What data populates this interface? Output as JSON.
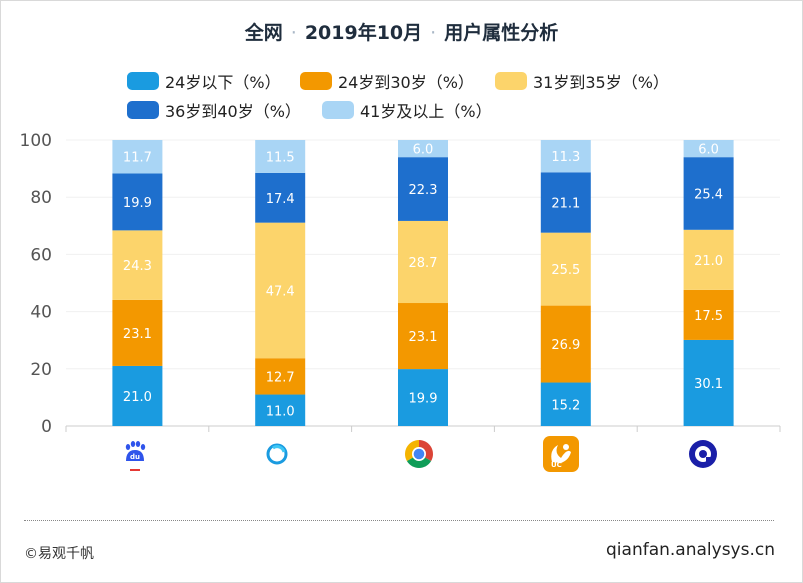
{
  "title": {
    "part1": "全网",
    "part2": "2019年10月",
    "part3": "用户属性分析",
    "separator": "·"
  },
  "chart_data": {
    "type": "bar",
    "stacked": true,
    "title": "全网 · 2019年10月 · 用户属性分析",
    "categories": [
      "百度",
      "QQ浏览器",
      "Chrome",
      "UC浏览器",
      "夸克"
    ],
    "category_icons": [
      "baidu-icon",
      "qq-browser-icon",
      "chrome-icon",
      "uc-browser-icon",
      "quark-icon"
    ],
    "ylim": [
      0,
      100
    ],
    "yticks": [
      0,
      20,
      40,
      60,
      80,
      100
    ],
    "legend_position": "top",
    "series": [
      {
        "name": "24岁以下（%）",
        "color": "#1a9be0",
        "values": [
          21.0,
          11.0,
          19.9,
          15.2,
          30.1
        ]
      },
      {
        "name": "24岁到30岁（%）",
        "color": "#f39800",
        "values": [
          23.1,
          12.7,
          23.1,
          26.9,
          17.5
        ]
      },
      {
        "name": "31岁到35岁（%）",
        "color": "#fcd46b",
        "values": [
          24.3,
          47.4,
          28.7,
          25.5,
          21.0
        ]
      },
      {
        "name": "36岁到40岁（%）",
        "color": "#1e6fcd",
        "values": [
          19.9,
          17.4,
          22.3,
          21.1,
          25.4
        ]
      },
      {
        "name": "41岁及以上（%）",
        "color": "#a9d5f5",
        "values": [
          11.7,
          11.5,
          6.0,
          11.3,
          6.0
        ]
      }
    ]
  },
  "footer": {
    "copyright": "©易观千帆",
    "site": "qianfan.analysys.cn"
  }
}
